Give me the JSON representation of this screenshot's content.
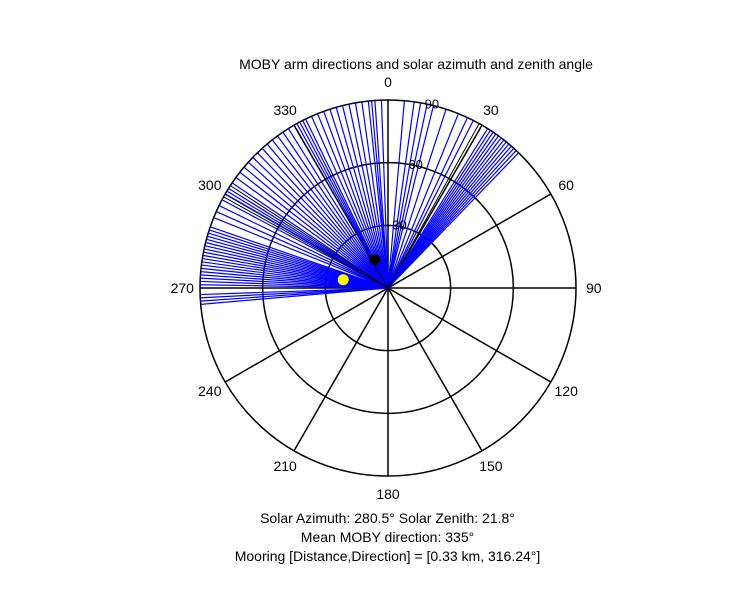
{
  "chart_data": {
    "type": "polar",
    "title": "MOBY arm directions and solar azimuth and zenith angle",
    "theta_direction": "clockwise",
    "theta_zero": "top",
    "theta_ticks": [
      0,
      30,
      60,
      90,
      120,
      150,
      180,
      210,
      240,
      270,
      300,
      330
    ],
    "theta_tick_labels": [
      "0",
      "30",
      "60",
      "90",
      "120",
      "150",
      "180",
      "210",
      "240",
      "270",
      "300",
      "330"
    ],
    "r_lim": [
      0,
      90
    ],
    "r_ticks": [
      30,
      60,
      90
    ],
    "r_tick_labels": [
      "30",
      "60",
      "90"
    ],
    "r_tick_label_angle_deg": 15,
    "grid": true,
    "arm_color": "#0000ff",
    "black_line_color": "#000000",
    "arm_directions_deg": [
      271,
      272,
      273,
      274,
      275,
      276,
      277,
      278,
      279,
      280,
      281,
      282,
      283,
      284,
      285,
      286,
      287,
      288,
      289,
      268,
      267,
      266,
      265,
      292,
      294,
      296,
      298,
      300,
      301,
      302,
      304,
      306,
      308,
      310,
      312,
      314,
      316,
      318,
      320,
      322,
      324,
      326,
      328,
      330,
      331,
      332,
      333,
      334,
      336,
      338,
      340,
      342,
      344,
      346,
      348,
      350,
      352,
      354,
      355,
      356,
      358,
      5,
      8,
      10,
      12,
      14,
      18,
      22,
      25,
      27,
      32,
      33,
      34,
      35,
      36,
      37,
      38,
      39,
      40,
      41,
      42,
      43,
      44
    ],
    "black_arm_directions_deg": [
      299,
      303,
      330,
      29
    ],
    "solar_azimuth_deg": 280.5,
    "solar_zenith_deg": 21.8,
    "solar_marker_color": "#ffff00",
    "mean_moby_direction_deg": 335,
    "mean_marker_r": 15,
    "mean_marker_color": "#000000"
  },
  "caption": {
    "line1": "Solar Azimuth: 280.5°   Solar Zenith: 21.8°",
    "line2": "Mean MOBY direction: 335°",
    "line3": "Mooring [Distance,Direction] = [0.33 km, 316.24°]"
  }
}
